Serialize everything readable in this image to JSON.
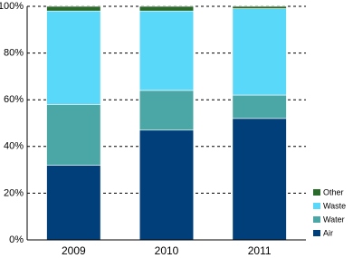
{
  "chart_data": {
    "type": "stacked_bar",
    "categories": [
      "2009",
      "2010",
      "2011"
    ],
    "series": [
      {
        "name": "Air",
        "color": "#003f7a",
        "values": [
          32,
          47,
          52
        ]
      },
      {
        "name": "Water",
        "color": "#4ba6a6",
        "values": [
          26,
          17,
          10
        ]
      },
      {
        "name": "Waste",
        "color": "#5ad8fa",
        "values": [
          40,
          34,
          37
        ]
      },
      {
        "name": "Other",
        "color": "#2a6a2a",
        "values": [
          2,
          2,
          1
        ]
      }
    ],
    "ylim": [
      0,
      100
    ],
    "yticks": [
      {
        "value": 0,
        "label": "0%"
      },
      {
        "value": 20,
        "label": "20%"
      },
      {
        "value": 40,
        "label": "40%"
      },
      {
        "value": 60,
        "label": "60%"
      },
      {
        "value": 80,
        "label": "80%"
      },
      {
        "value": 100,
        "label": "100%"
      }
    ],
    "grid": true,
    "legend": "right"
  }
}
